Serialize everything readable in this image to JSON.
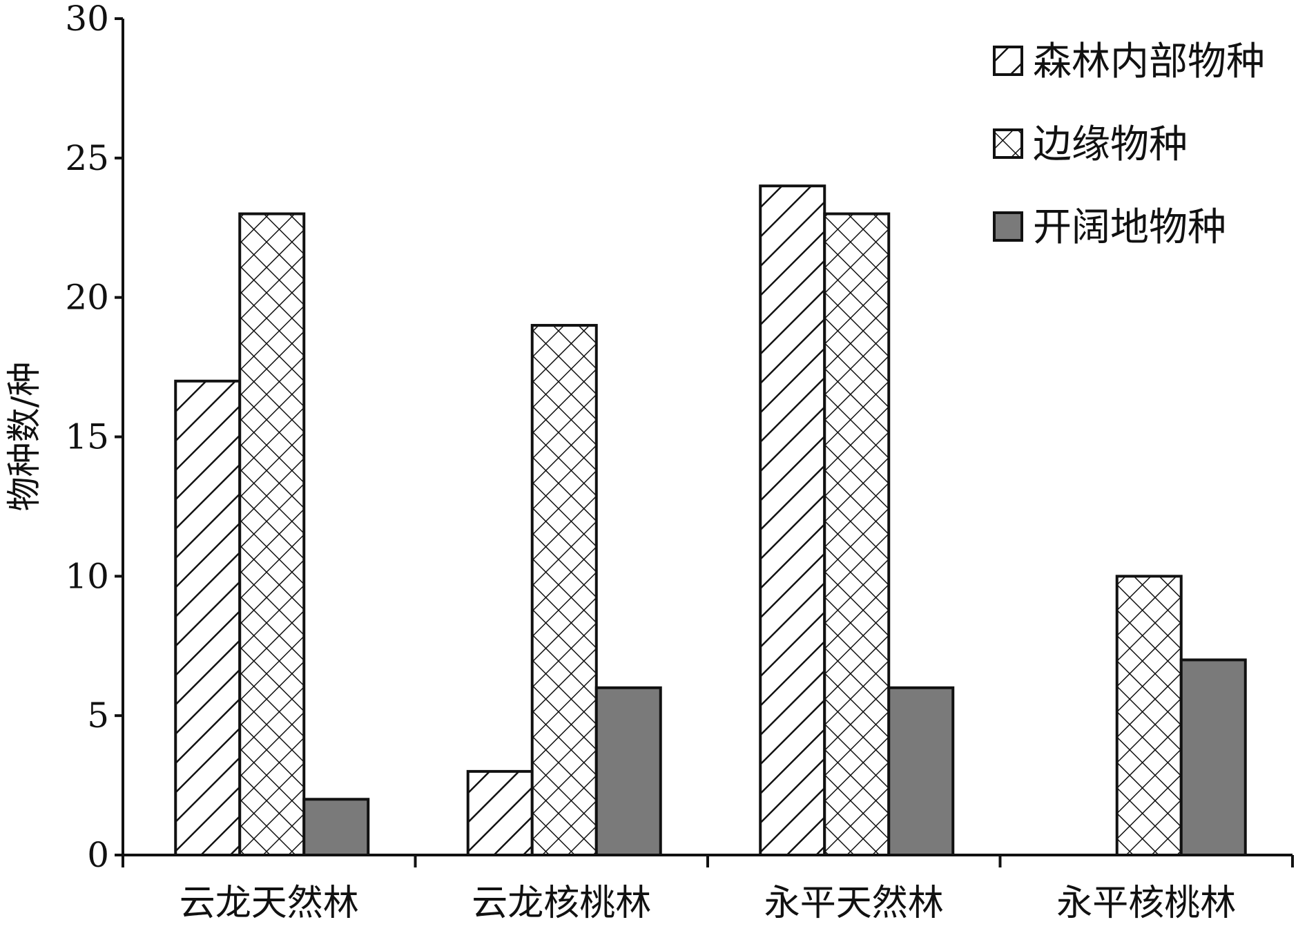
{
  "chart_data": {
    "type": "bar",
    "title": "",
    "xlabel": "",
    "ylabel": "物种数/种",
    "ylim": [
      0,
      30
    ],
    "yticks": [
      0,
      5,
      10,
      15,
      20,
      25,
      30
    ],
    "grid": false,
    "legend_position": "top-right",
    "categories": [
      "云龙天然林",
      "云龙核桃林",
      "永平天然林",
      "永平核桃林"
    ],
    "series": [
      {
        "name": "森林内部物种",
        "values": [
          17,
          3,
          24,
          0
        ],
        "pattern": "diagonal-hatch",
        "color": "#ffffff"
      },
      {
        "name": "边缘物种",
        "values": [
          23,
          19,
          23,
          10
        ],
        "pattern": "cross-hatch",
        "color": "#ffffff"
      },
      {
        "name": "开阔地物种",
        "values": [
          2,
          6,
          6,
          7
        ],
        "pattern": "solid",
        "color": "#7a7a7a"
      }
    ]
  }
}
